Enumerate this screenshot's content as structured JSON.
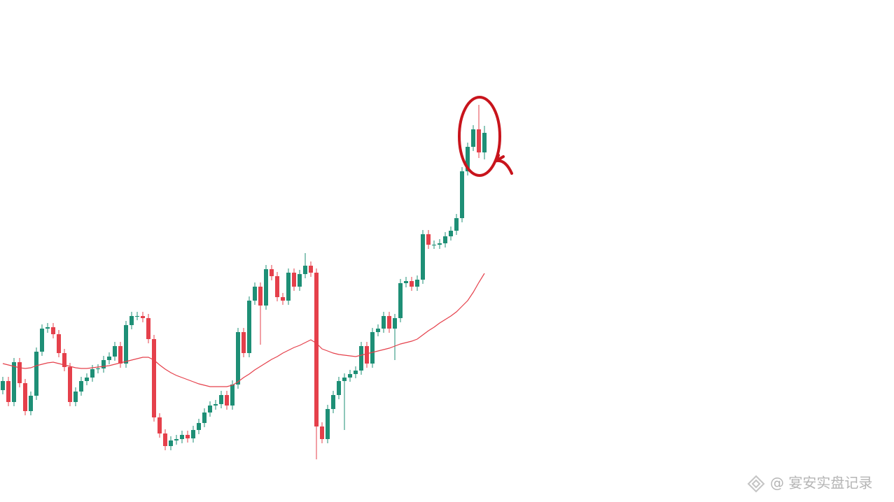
{
  "chart_data": {
    "type": "candlestick",
    "up_color": "#1e8f76",
    "down_color": "#e5404b",
    "ylim": [
      0,
      718
    ],
    "open": [
      160,
      173,
      143,
      200,
      170,
      130,
      152,
      215,
      248,
      250,
      240,
      213,
      193,
      143,
      158,
      173,
      178,
      190,
      191,
      203,
      208,
      223,
      198,
      253,
      266,
      266,
      263,
      233,
      121,
      98,
      80,
      88,
      90,
      96,
      91,
      103,
      113,
      128,
      138,
      140,
      153,
      138,
      168,
      243,
      213,
      288,
      308,
      281,
      333,
      323,
      293,
      288,
      328,
      308,
      326,
      338,
      328,
      108,
      90,
      133,
      153,
      173,
      178,
      183,
      188,
      223,
      198,
      243,
      248,
      266,
      248,
      263,
      313,
      316,
      308,
      318,
      383,
      368,
      368,
      370,
      380,
      388,
      406,
      473,
      508,
      533,
      500
    ],
    "high": [
      179,
      179,
      206,
      206,
      176,
      158,
      221,
      254,
      256,
      256,
      246,
      219,
      199,
      164,
      179,
      184,
      196,
      197,
      209,
      214,
      229,
      229,
      259,
      272,
      272,
      272,
      269,
      239,
      127,
      104,
      94,
      96,
      102,
      102,
      109,
      119,
      134,
      144,
      146,
      159,
      159,
      174,
      249,
      249,
      294,
      314,
      314,
      339,
      339,
      329,
      299,
      334,
      334,
      332,
      356,
      344,
      334,
      114,
      139,
      159,
      179,
      184,
      189,
      194,
      229,
      229,
      249,
      254,
      272,
      272,
      269,
      319,
      322,
      322,
      324,
      389,
      389,
      374,
      376,
      386,
      394,
      412,
      479,
      514,
      539,
      568,
      538
    ],
    "low": [
      154,
      137,
      137,
      164,
      124,
      124,
      146,
      209,
      242,
      234,
      207,
      187,
      137,
      137,
      152,
      167,
      172,
      184,
      185,
      197,
      202,
      192,
      192,
      247,
      260,
      257,
      227,
      115,
      92,
      74,
      74,
      82,
      84,
      85,
      85,
      97,
      107,
      122,
      132,
      134,
      132,
      132,
      162,
      207,
      207,
      282,
      225,
      275,
      317,
      287,
      282,
      282,
      302,
      302,
      320,
      322,
      61,
      84,
      84,
      127,
      147,
      103,
      172,
      177,
      182,
      192,
      192,
      237,
      242,
      242,
      203,
      257,
      307,
      302,
      302,
      312,
      362,
      362,
      362,
      364,
      374,
      382,
      400,
      467,
      502,
      492,
      490
    ],
    "close": [
      173,
      143,
      200,
      170,
      130,
      152,
      215,
      248,
      250,
      240,
      213,
      193,
      143,
      158,
      173,
      178,
      190,
      191,
      203,
      208,
      223,
      198,
      253,
      266,
      266,
      263,
      233,
      121,
      98,
      80,
      88,
      90,
      96,
      91,
      103,
      113,
      128,
      138,
      140,
      153,
      138,
      168,
      243,
      213,
      288,
      308,
      281,
      333,
      323,
      293,
      288,
      328,
      308,
      326,
      338,
      328,
      108,
      90,
      133,
      153,
      173,
      178,
      183,
      188,
      223,
      198,
      243,
      248,
      266,
      248,
      263,
      313,
      316,
      308,
      318,
      383,
      368,
      368,
      370,
      380,
      388,
      406,
      473,
      508,
      533,
      500,
      528
    ],
    "ma": {
      "color": "#e5404b",
      "values": [
        198,
        196,
        194,
        192,
        191,
        192,
        195,
        197,
        199,
        200,
        198,
        196,
        194,
        192,
        191,
        191,
        192,
        193,
        194,
        195,
        197,
        199,
        201,
        203,
        205,
        207,
        207,
        203,
        196,
        190,
        185,
        181,
        178,
        175,
        172,
        169,
        167,
        165,
        165,
        165,
        165,
        167,
        172,
        178,
        183,
        189,
        194,
        199,
        204,
        208,
        213,
        217,
        221,
        224,
        228,
        232,
        227,
        219,
        216,
        213,
        211,
        210,
        209,
        208,
        210,
        212,
        214,
        216,
        218,
        220,
        223,
        226,
        228,
        230,
        233,
        239,
        245,
        250,
        256,
        261,
        266,
        272,
        280,
        288,
        300,
        314,
        327
      ]
    },
    "watermark": "@ 宴安实盘记录"
  }
}
